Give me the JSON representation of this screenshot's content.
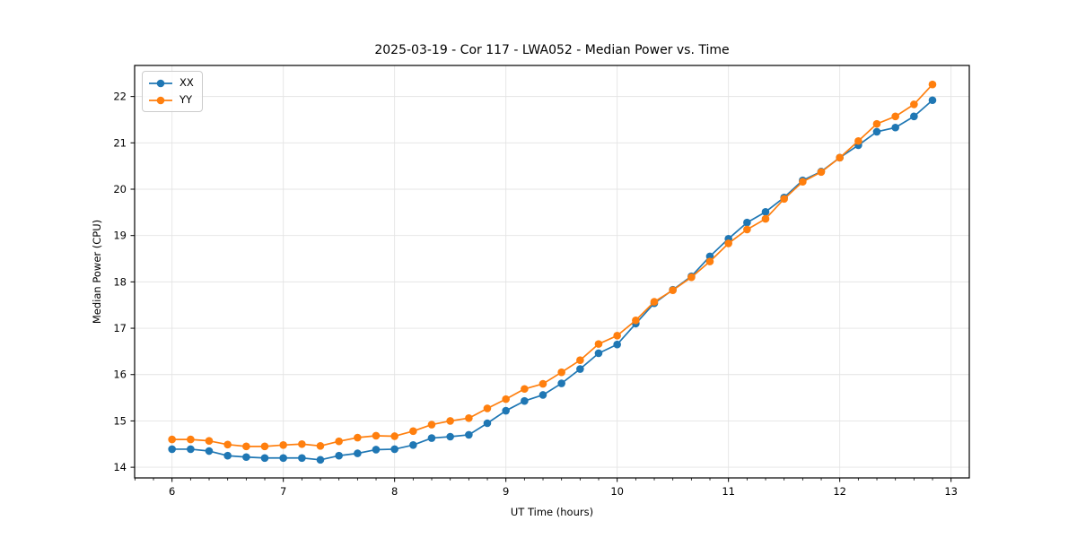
{
  "figure": {
    "title": "2025-03-19 - Cor 117 - LWA052 - Median Power vs. Time",
    "xlabel": "UT Time (hours)",
    "ylabel": "Median Power (CPU)"
  },
  "legend": {
    "position": "upper-left",
    "items": [
      {
        "label": "XX",
        "color": "#1f77b4"
      },
      {
        "label": "YY",
        "color": "#ff7f0e"
      }
    ]
  },
  "colors": {
    "series_xx": "#1f77b4",
    "series_yy": "#ff7f0e",
    "grid": "#e4e4e4",
    "spine": "#000000",
    "text": "#000000"
  },
  "chart_data": {
    "type": "line",
    "title": "2025-03-19 - Cor 117 - LWA052 - Median Power vs. Time",
    "xlabel": "UT Time (hours)",
    "ylabel": "Median Power (CPU)",
    "xlim": [
      5.664,
      13.164
    ],
    "ylim": [
      13.77,
      22.67
    ],
    "x_ticks": [
      6,
      7,
      8,
      9,
      10,
      11,
      12,
      13
    ],
    "y_ticks": [
      14,
      15,
      16,
      17,
      18,
      19,
      20,
      21,
      22
    ],
    "minor_x_tick_step": 0.16667,
    "grid": true,
    "marker": "circle",
    "legend_position": "upper-left",
    "x": [
      6.0,
      6.167,
      6.333,
      6.5,
      6.667,
      6.833,
      7.0,
      7.167,
      7.333,
      7.5,
      7.667,
      7.833,
      8.0,
      8.167,
      8.333,
      8.5,
      8.667,
      8.833,
      9.0,
      9.167,
      9.333,
      9.5,
      9.667,
      9.833,
      10.0,
      10.167,
      10.333,
      10.5,
      10.667,
      10.833,
      11.0,
      11.167,
      11.333,
      11.5,
      11.667,
      11.833,
      12.0,
      12.167,
      12.333,
      12.5,
      12.667,
      12.833
    ],
    "series": [
      {
        "name": "XX",
        "color": "#1f77b4",
        "values": [
          14.39,
          14.39,
          14.35,
          14.25,
          14.22,
          14.2,
          14.2,
          14.2,
          14.16,
          14.25,
          14.3,
          14.38,
          14.39,
          14.48,
          14.63,
          14.66,
          14.7,
          14.95,
          15.22,
          15.43,
          15.56,
          15.81,
          16.12,
          16.46,
          16.65,
          17.1,
          17.54,
          17.83,
          18.12,
          18.55,
          18.93,
          19.28,
          19.51,
          19.82,
          20.19,
          20.38,
          20.68,
          20.95,
          21.24,
          21.33,
          21.57,
          21.92
        ]
      },
      {
        "name": "YY",
        "color": "#ff7f0e",
        "values": [
          14.6,
          14.6,
          14.57,
          14.49,
          14.45,
          14.45,
          14.48,
          14.5,
          14.46,
          14.56,
          14.64,
          14.68,
          14.67,
          14.78,
          14.92,
          15.0,
          15.06,
          15.27,
          15.47,
          15.69,
          15.8,
          16.05,
          16.31,
          16.66,
          16.84,
          17.17,
          17.57,
          17.82,
          18.1,
          18.44,
          18.83,
          19.13,
          19.36,
          19.79,
          20.16,
          20.37,
          20.68,
          21.04,
          21.41,
          21.57,
          21.83,
          22.26
        ]
      }
    ]
  }
}
